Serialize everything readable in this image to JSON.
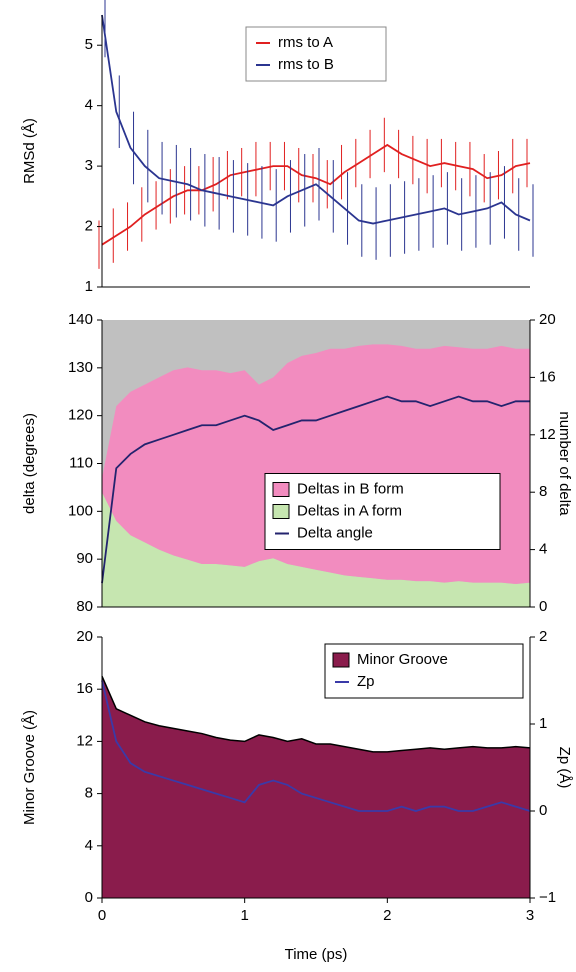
{
  "chart_data": [
    {
      "type": "line",
      "ylabel": "RMSd (Å)",
      "legend": "top-center",
      "x": [
        0,
        0.1,
        0.2,
        0.3,
        0.4,
        0.5,
        0.6,
        0.7,
        0.8,
        0.9,
        1.0,
        1.1,
        1.2,
        1.3,
        1.4,
        1.5,
        1.6,
        1.7,
        1.8,
        1.9,
        2.0,
        2.1,
        2.2,
        2.3,
        2.4,
        2.5,
        2.6,
        2.7,
        2.8,
        2.9,
        3.0
      ],
      "xlim": [
        0,
        3
      ],
      "ylim": [
        1,
        5.5
      ],
      "yticks": [
        1,
        2,
        3,
        4,
        5
      ],
      "series": [
        {
          "name": "rms to A",
          "kind": "line",
          "color": "#e02020",
          "values": [
            1.7,
            1.85,
            2.0,
            2.2,
            2.35,
            2.5,
            2.6,
            2.6,
            2.7,
            2.85,
            2.9,
            2.95,
            3.0,
            3.0,
            2.85,
            2.8,
            2.7,
            2.9,
            3.05,
            3.2,
            3.35,
            3.2,
            3.1,
            3.0,
            3.05,
            3.0,
            2.95,
            2.8,
            2.85,
            3.0,
            3.05
          ],
          "errors": [
            0.4,
            0.45,
            0.4,
            0.45,
            0.4,
            0.45,
            0.4,
            0.4,
            0.45,
            0.4,
            0.4,
            0.45,
            0.4,
            0.4,
            0.45,
            0.4,
            0.4,
            0.45,
            0.4,
            0.4,
            0.45,
            0.4,
            0.4,
            0.45,
            0.4,
            0.4,
            0.45,
            0.4,
            0.4,
            0.45,
            0.4
          ]
        },
        {
          "name": "rms to B",
          "kind": "line",
          "color": "#2b3590",
          "values": [
            5.5,
            3.9,
            3.3,
            3.0,
            2.8,
            2.75,
            2.7,
            2.6,
            2.55,
            2.5,
            2.45,
            2.4,
            2.35,
            2.5,
            2.6,
            2.7,
            2.5,
            2.3,
            2.1,
            2.05,
            2.1,
            2.15,
            2.2,
            2.25,
            2.3,
            2.2,
            2.25,
            2.3,
            2.4,
            2.2,
            2.1
          ],
          "errors": [
            0.7,
            0.6,
            0.6,
            0.6,
            0.6,
            0.6,
            0.6,
            0.6,
            0.6,
            0.6,
            0.6,
            0.6,
            0.6,
            0.6,
            0.6,
            0.6,
            0.6,
            0.6,
            0.6,
            0.6,
            0.6,
            0.6,
            0.6,
            0.6,
            0.6,
            0.6,
            0.6,
            0.6,
            0.6,
            0.6,
            0.6
          ]
        }
      ]
    },
    {
      "type": "area",
      "ylabel": "delta (degrees)",
      "y2label": "number of delta",
      "legend": "center-right",
      "background": "#c0c0c0",
      "x": [
        0,
        0.1,
        0.2,
        0.3,
        0.4,
        0.5,
        0.6,
        0.7,
        0.8,
        0.9,
        1.0,
        1.1,
        1.2,
        1.3,
        1.4,
        1.5,
        1.6,
        1.7,
        1.8,
        1.9,
        2.0,
        2.1,
        2.2,
        2.3,
        2.4,
        2.5,
        2.6,
        2.7,
        2.8,
        2.9,
        3.0
      ],
      "xlim": [
        0,
        3
      ],
      "ylim": [
        80,
        140
      ],
      "yticks": [
        80,
        90,
        100,
        110,
        120,
        130,
        140
      ],
      "y2lim": [
        0,
        20
      ],
      "y2ticks": [
        0,
        4,
        8,
        12,
        16,
        20
      ],
      "series": [
        {
          "name": "Deltas in A form",
          "kind": "area",
          "axis": "y2",
          "color": "#c6e6b0",
          "values": [
            8,
            6,
            5,
            4.5,
            4,
            3.6,
            3.3,
            3,
            3,
            2.9,
            2.8,
            3.2,
            3.4,
            3,
            2.8,
            2.6,
            2.4,
            2.2,
            2.1,
            2,
            1.9,
            1.9,
            1.8,
            1.8,
            1.7,
            1.8,
            1.7,
            1.7,
            1.7,
            1.6,
            1.7
          ]
        },
        {
          "name": "Deltas in B form",
          "kind": "area",
          "axis": "y2",
          "color": "#f28cbf",
          "values": [
            1,
            8,
            10,
            11,
            12,
            12.9,
            13.4,
            13.5,
            13.5,
            13.4,
            13.7,
            12.3,
            12.6,
            14,
            14.7,
            15.1,
            15.6,
            15.8,
            16.1,
            16.3,
            16.4,
            16.3,
            16.2,
            16.2,
            16.5,
            16.3,
            16.3,
            16.3,
            16.5,
            16.4,
            16.3
          ]
        },
        {
          "name": "Delta angle",
          "kind": "line",
          "color": "#23236e",
          "values": [
            85,
            109,
            112,
            114,
            115,
            116,
            117,
            118,
            118,
            119,
            120,
            119,
            117,
            118,
            119,
            119,
            120,
            121,
            122,
            123,
            124,
            123,
            123,
            122,
            123,
            124,
            123,
            123,
            122,
            123,
            123
          ]
        }
      ],
      "legend_order": [
        1,
        0,
        2
      ]
    },
    {
      "type": "area",
      "ylabel": "Minor Groove (Å)",
      "y2label": "Zp (Å)",
      "xlabel": "Time (ps)",
      "legend": "top-right",
      "x": [
        0,
        0.1,
        0.2,
        0.3,
        0.4,
        0.5,
        0.6,
        0.7,
        0.8,
        0.9,
        1.0,
        1.1,
        1.2,
        1.3,
        1.4,
        1.5,
        1.6,
        1.7,
        1.8,
        1.9,
        2.0,
        2.1,
        2.2,
        2.3,
        2.4,
        2.5,
        2.6,
        2.7,
        2.8,
        2.9,
        3.0
      ],
      "xlim": [
        0,
        3
      ],
      "xticks": [
        0,
        1,
        2,
        3
      ],
      "ylim": [
        0,
        20
      ],
      "yticks": [
        0,
        4,
        8,
        12,
        16,
        20
      ],
      "y2lim": [
        -1,
        2
      ],
      "y2ticks": [
        {
          "value": -1,
          "label": "−1"
        },
        0,
        1,
        2
      ],
      "series": [
        {
          "name": "Minor Groove",
          "kind": "area",
          "color": "#8a1c4c",
          "edge": "#000000",
          "values": [
            17,
            14.5,
            14,
            13.5,
            13.2,
            13,
            12.8,
            12.6,
            12.3,
            12.1,
            12,
            12.5,
            12.3,
            12,
            12.2,
            11.8,
            11.8,
            11.6,
            11.4,
            11.2,
            11.2,
            11.3,
            11.4,
            11.5,
            11.4,
            11.5,
            11.6,
            11.5,
            11.5,
            11.6,
            11.5
          ]
        },
        {
          "name": "Zp",
          "kind": "line",
          "axis": "y2",
          "color": "#3a3aa8",
          "values": [
            1.5,
            0.8,
            0.55,
            0.45,
            0.4,
            0.35,
            0.3,
            0.25,
            0.2,
            0.15,
            0.1,
            0.3,
            0.35,
            0.3,
            0.2,
            0.15,
            0.1,
            0.05,
            0.0,
            0.0,
            0.0,
            0.05,
            0.0,
            0.05,
            0.05,
            0.0,
            0.0,
            0.05,
            0.1,
            0.05,
            0.0
          ]
        }
      ]
    }
  ]
}
